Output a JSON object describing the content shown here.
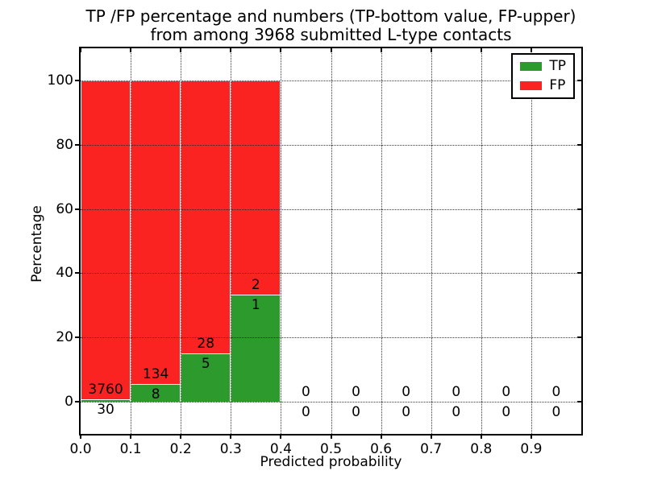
{
  "figure": {
    "title_line1": "TP /FP percentage and numbers (TP-bottom value, FP-upper)",
    "title_line2": "from among 3968 submitted L-type contacts"
  },
  "legend": {
    "position": "upper right",
    "items": [
      {
        "label": "TP",
        "color": "#2d9a2d"
      },
      {
        "label": "FP",
        "color": "#fb2222"
      }
    ]
  },
  "chart_data": {
    "type": "bar",
    "stacked": true,
    "title": "TP /FP percentage and numbers (TP-bottom value, FP-upper) from among 3968 submitted L-type contacts",
    "xlabel": "Predicted probability",
    "ylabel": "Percentage",
    "xlim": [
      0.0,
      1.0
    ],
    "ylim": [
      -10,
      110
    ],
    "xticks": [
      "0.0",
      "0.1",
      "0.2",
      "0.3",
      "0.4",
      "0.5",
      "0.6",
      "0.7",
      "0.8",
      "0.9"
    ],
    "yticks": [
      0,
      20,
      40,
      60,
      80,
      100
    ],
    "grid": "dotted both axes",
    "bin_width": 0.1,
    "total_contacts": 3968,
    "bar_edge_color": "#ffffff",
    "series": [
      {
        "name": "TP",
        "color": "#2d9a2d",
        "counts": [
          30,
          8,
          5,
          1,
          0,
          0,
          0,
          0,
          0,
          0
        ],
        "values_pct": [
          0.79,
          5.63,
          15.15,
          33.33,
          0,
          0,
          0,
          0,
          0,
          0
        ]
      },
      {
        "name": "FP",
        "color": "#fb2222",
        "counts": [
          3760,
          134,
          28,
          2,
          0,
          0,
          0,
          0,
          0,
          0
        ],
        "values_pct": [
          99.21,
          94.37,
          84.85,
          66.67,
          0,
          0,
          0,
          0,
          0,
          0
        ]
      }
    ]
  }
}
